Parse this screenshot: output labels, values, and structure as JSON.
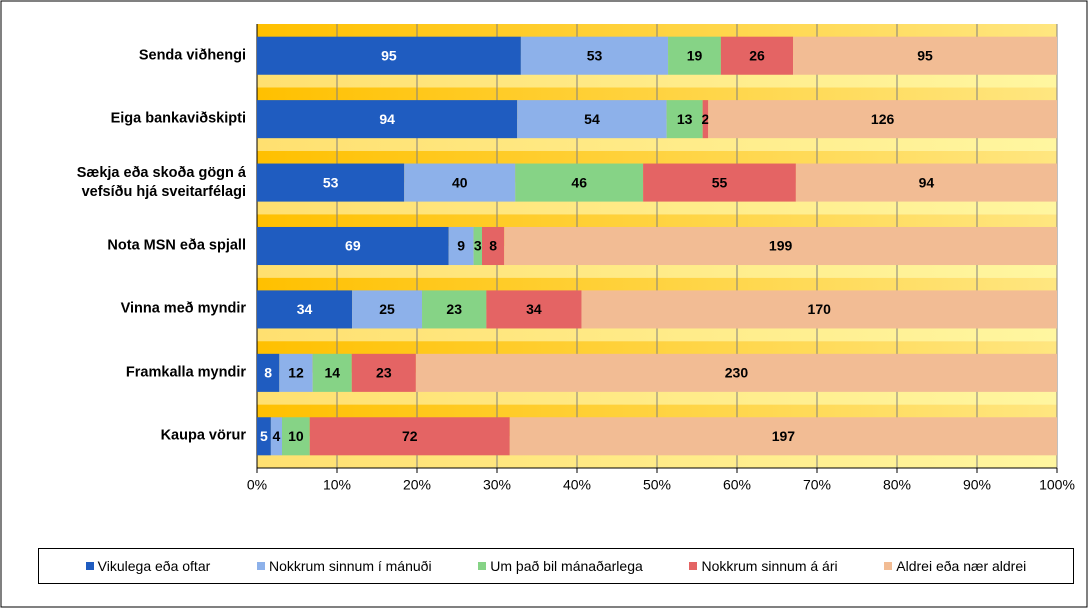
{
  "chart_data": {
    "type": "bar",
    "orientation": "horizontal",
    "stack": "percent",
    "categories": [
      "Senda viðhengi",
      "Eiga bankaviðskipti",
      "Sækja eða skoða gögn á\nvefsíðu hjá sveitarfélagi",
      "Nota MSN eða spjall",
      "Vinna með myndir",
      "Framkalla myndir",
      "Kaupa vörur"
    ],
    "series": [
      {
        "name": "Vikulega eða oftar",
        "color": "#1f5cc0",
        "label_color": "#ffffff",
        "values": [
          95,
          94,
          53,
          69,
          34,
          8,
          5
        ]
      },
      {
        "name": "Nokkrum sinnum í mánuði",
        "color": "#8db1ea",
        "label_color": "#000000",
        "values": [
          53,
          54,
          40,
          9,
          25,
          12,
          4
        ]
      },
      {
        "name": "Um það bil mánaðarlega",
        "color": "#86d386",
        "label_color": "#000000",
        "values": [
          19,
          13,
          46,
          3,
          23,
          14,
          10
        ]
      },
      {
        "name": "Nokkrum sinnum á ári",
        "color": "#e46464",
        "label_color": "#000000",
        "values": [
          26,
          2,
          55,
          8,
          34,
          23,
          72
        ]
      },
      {
        "name": "Aldrei eða nær aldrei",
        "color": "#f2bc94",
        "label_color": "#000000",
        "values": [
          95,
          126,
          94,
          199,
          170,
          230,
          197
        ]
      }
    ],
    "xlim": [
      0,
      100
    ],
    "xticks": [
      {
        "value": 0,
        "label": "0%"
      },
      {
        "value": 10,
        "label": "10%"
      },
      {
        "value": 20,
        "label": "20%"
      },
      {
        "value": 30,
        "label": "30%"
      },
      {
        "value": 40,
        "label": "40%"
      },
      {
        "value": 50,
        "label": "50%"
      },
      {
        "value": 60,
        "label": "60%"
      },
      {
        "value": 70,
        "label": "70%"
      },
      {
        "value": 80,
        "label": "80%"
      },
      {
        "value": 90,
        "label": "90%"
      },
      {
        "value": 100,
        "label": "100%"
      }
    ],
    "grid": true,
    "legend": "bottom"
  }
}
